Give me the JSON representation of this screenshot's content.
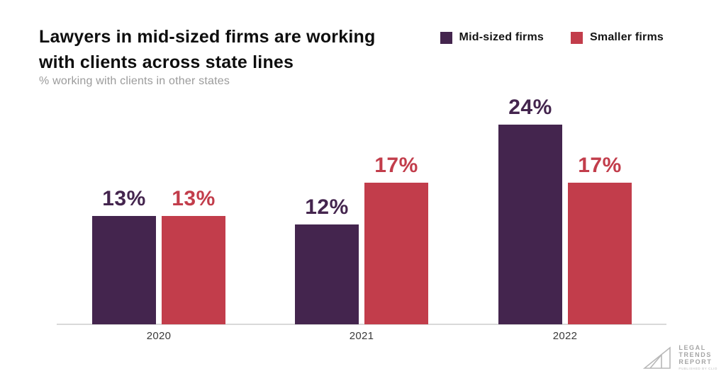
{
  "header": {
    "title": "Lawyers in mid-sized firms are working\nwith clients across state lines",
    "subtitle": "% working with clients in other states"
  },
  "legend": {
    "items": [
      {
        "label": "Mid-sized firms",
        "color": "#44254e"
      },
      {
        "label": "Smaller firms",
        "color": "#c23d4b"
      }
    ]
  },
  "chart_data": {
    "type": "bar",
    "title": "Lawyers in mid-sized firms are working with clients across state lines",
    "subtitle": "% working with clients in other states",
    "categories": [
      "2020",
      "2021",
      "2022"
    ],
    "series": [
      {
        "name": "Mid-sized firms",
        "color": "#44254e",
        "values": [
          13,
          12,
          24
        ]
      },
      {
        "name": "Smaller firms",
        "color": "#c23d4b",
        "values": [
          13,
          17,
          17
        ]
      }
    ],
    "unit": "%",
    "ylabel": "% working with clients in other states",
    "ylim": [
      0,
      26
    ],
    "grid": false,
    "legend_position": "top-right",
    "value_labels_shown": true
  },
  "footer": {
    "logo_lines": [
      "LEGAL",
      "TRENDS",
      "REPORT"
    ],
    "logo_tagline": "PUBLISHED BY CLIO"
  },
  "colors": {
    "mid_sized": "#44254e",
    "smaller": "#c23d4b",
    "axis_line": "#d9d9d9",
    "title_text": "#0e0e0e",
    "subtitle_text": "#9b9b9b",
    "background": "#ffffff"
  }
}
